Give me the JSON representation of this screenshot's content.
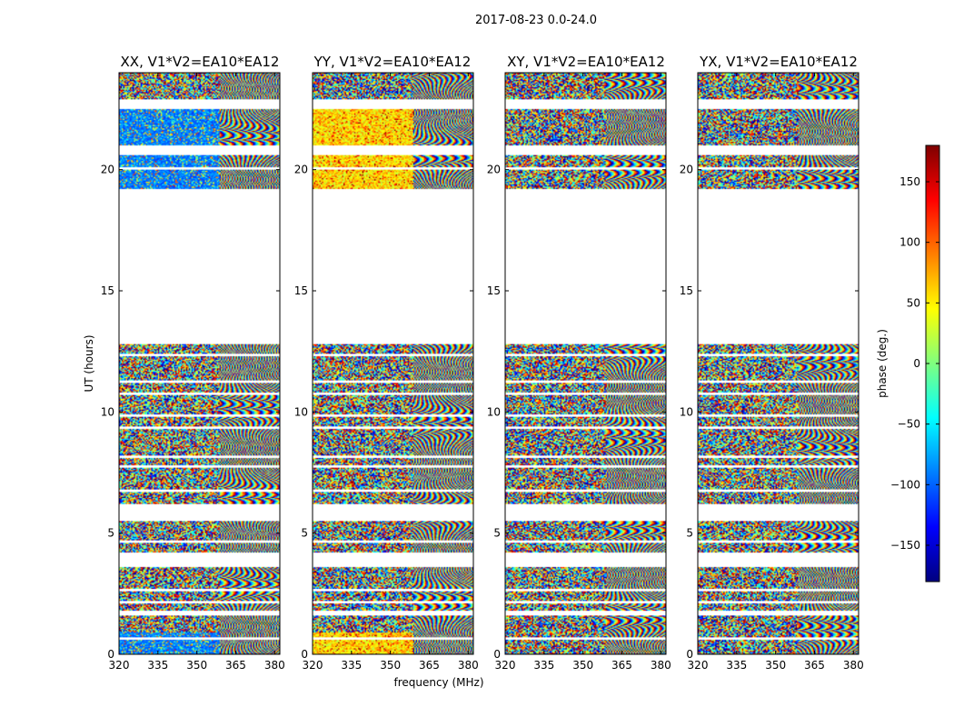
{
  "chart_data": {
    "type": "heatmap",
    "suptitle": "2017-08-23 0.0-24.0",
    "xlabel": "frequency (MHz)",
    "ylabel": "UT (hours)",
    "xlim": [
      320,
      382
    ],
    "ylim": [
      0,
      24
    ],
    "xticks": [
      320,
      335,
      350,
      365,
      380
    ],
    "yticks": [
      0,
      5,
      10,
      15,
      20
    ],
    "panels": [
      {
        "title": "XX, V1*V2=EA10*EA12",
        "polarization": "XX",
        "bias": "blue-low-band"
      },
      {
        "title": "YY, V1*V2=EA10*EA12",
        "polarization": "YY",
        "bias": "yellow-low-band"
      },
      {
        "title": "XY, V1*V2=EA10*EA12",
        "polarization": "XY",
        "bias": "none"
      },
      {
        "title": "YX, V1*V2=EA10*EA12",
        "polarization": "YX",
        "bias": "none"
      }
    ],
    "data_intervals_hours": [
      [
        0.0,
        0.6
      ],
      [
        0.7,
        1.6
      ],
      [
        1.8,
        2.1
      ],
      [
        2.2,
        2.6
      ],
      [
        2.7,
        3.6
      ],
      [
        4.2,
        4.6
      ],
      [
        4.7,
        5.5
      ],
      [
        6.2,
        6.7
      ],
      [
        6.8,
        7.7
      ],
      [
        7.8,
        8.1
      ],
      [
        8.2,
        9.3
      ],
      [
        9.4,
        9.8
      ],
      [
        9.9,
        10.7
      ],
      [
        10.8,
        11.2
      ],
      [
        11.3,
        12.3
      ],
      [
        12.4,
        12.8
      ],
      [
        19.2,
        20.0
      ],
      [
        20.1,
        20.6
      ],
      [
        21.0,
        22.5
      ],
      [
        22.9,
        24.0
      ]
    ],
    "colorbar": {
      "label": "phase (deg.)",
      "range": [
        -180,
        180
      ],
      "ticks": [
        -150,
        -100,
        -50,
        0,
        50,
        100,
        150
      ],
      "tick_labels": [
        "−150",
        "−100",
        "−50",
        "0",
        "50",
        "100",
        "150"
      ],
      "colormap": "jet",
      "colors": [
        "#00007f",
        "#0000ff",
        "#007fff",
        "#00ffff",
        "#7fff7f",
        "#ffff00",
        "#ff7f00",
        "#ff0000",
        "#7f0000"
      ]
    }
  }
}
